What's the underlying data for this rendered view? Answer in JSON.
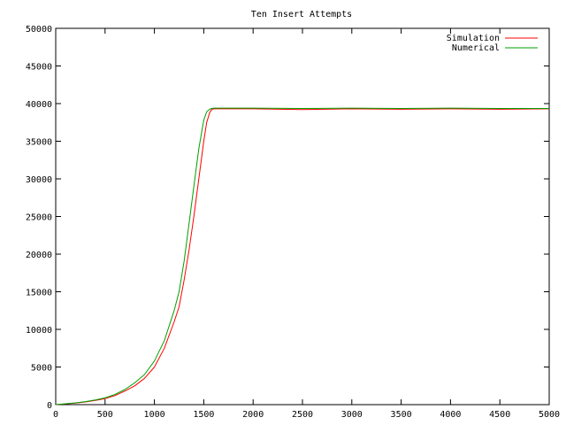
{
  "chart_data": {
    "type": "line",
    "title": "Ten Insert Attempts",
    "xlabel": "",
    "ylabel": "",
    "xlim": [
      0,
      5000
    ],
    "ylim": [
      0,
      50000
    ],
    "x_ticks": [
      0,
      500,
      1000,
      1500,
      2000,
      2500,
      3000,
      3500,
      4000,
      4500,
      5000
    ],
    "y_ticks": [
      0,
      5000,
      10000,
      15000,
      20000,
      25000,
      30000,
      35000,
      40000,
      45000,
      50000
    ],
    "legend_position": "top-right",
    "grid": false,
    "series": [
      {
        "name": "Simulation",
        "color": "#ff0000",
        "x": [
          0,
          100,
          200,
          300,
          400,
          500,
          600,
          700,
          800,
          900,
          1000,
          1100,
          1200,
          1250,
          1300,
          1350,
          1400,
          1450,
          1500,
          1530,
          1560,
          1580,
          1600,
          1650,
          2000,
          2500,
          3000,
          3500,
          4000,
          4500,
          5000
        ],
        "values": [
          0,
          100,
          200,
          350,
          550,
          800,
          1200,
          1800,
          2500,
          3500,
          5000,
          7500,
          11000,
          13000,
          16500,
          20500,
          25000,
          30000,
          35000,
          37500,
          38800,
          39200,
          39300,
          39300,
          39300,
          39200,
          39300,
          39250,
          39300,
          39250,
          39300
        ]
      },
      {
        "name": "Numerical",
        "color": "#00a000",
        "x": [
          0,
          100,
          200,
          300,
          400,
          500,
          600,
          700,
          800,
          900,
          1000,
          1100,
          1200,
          1250,
          1300,
          1350,
          1400,
          1450,
          1500,
          1530,
          1560,
          1580,
          1600,
          1650,
          2000,
          2500,
          3000,
          3500,
          4000,
          4500,
          5000
        ],
        "values": [
          0,
          120,
          230,
          400,
          620,
          900,
          1350,
          2000,
          2900,
          4000,
          5800,
          8500,
          12500,
          15000,
          19000,
          24000,
          29000,
          34000,
          37800,
          38900,
          39250,
          39350,
          39400,
          39400,
          39400,
          39350,
          39400,
          39350,
          39400,
          39350,
          39350
        ]
      }
    ]
  }
}
